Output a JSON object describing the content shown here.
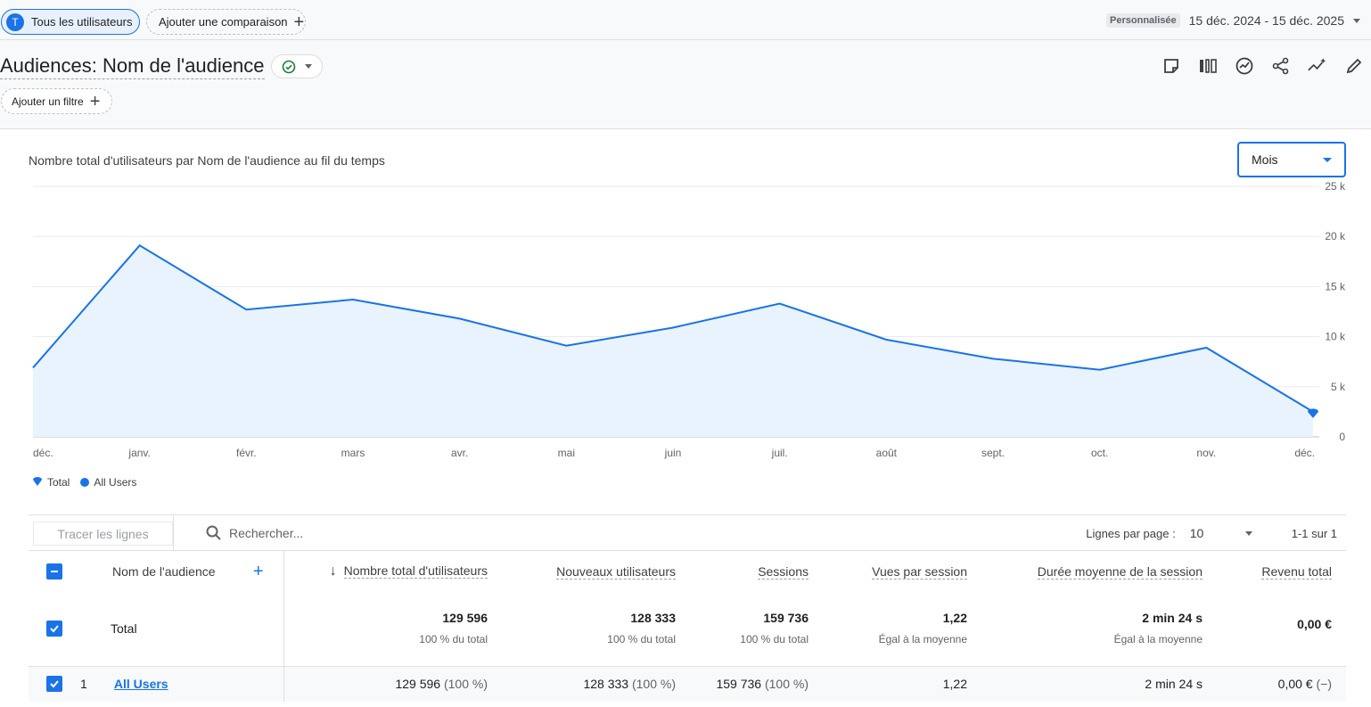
{
  "topbar": {
    "user_avatar_letter": "T",
    "user_chip_label": "Tous les utilisateurs",
    "compare_chip_label": "Ajouter une comparaison",
    "date_tag": "Personnalisée",
    "date_range": "15 déc. 2024 - 15 déc. 2025"
  },
  "header": {
    "title": "Audiences: Nom de l'audience",
    "filter_chip_label": "Ajouter un filtre"
  },
  "chart_panel": {
    "period_select": "Mois"
  },
  "chart_data": {
    "type": "area",
    "title": "Nombre total d'utilisateurs par Nom de l'audience au fil du temps",
    "categories": [
      "déc.",
      "janv.",
      "févr.",
      "mars",
      "avr.",
      "mai",
      "juin",
      "juil.",
      "août",
      "sept.",
      "oct.",
      "nov.",
      "déc."
    ],
    "y_ticks": [
      "0",
      "5 k",
      "10 k",
      "15 k",
      "20 k",
      "25 k"
    ],
    "ylim": [
      0,
      25000
    ],
    "series": [
      {
        "name": "All Users",
        "color": "#1a73e8",
        "values": [
          6900,
          19100,
          12700,
          13700,
          11800,
          9100,
          10900,
          13300,
          9700,
          7800,
          6700,
          8900,
          2500
        ]
      }
    ],
    "legend": [
      {
        "name": "Total",
        "marker": "pin"
      },
      {
        "name": "All Users",
        "marker": "dot"
      }
    ]
  },
  "table": {
    "trace_button": "Tracer les lignes",
    "search_placeholder": "Rechercher...",
    "rows_per_page_label": "Lignes par page :",
    "rows_per_page_value": "10",
    "pager_text": "1-1 sur 1",
    "dimension_header": "Nom de l'audience",
    "headers": [
      "Nombre total d'utilisateurs",
      "Nouveaux utilisateurs",
      "Sessions",
      "Vues par session",
      "Durée moyenne de la session",
      "Revenu total"
    ],
    "total_row": {
      "label": "Total",
      "values": [
        "129 596",
        "128 333",
        "159 736",
        "1,22",
        "2 min 24 s",
        "0,00 €"
      ],
      "subs": [
        "100 % du total",
        "100 % du total",
        "100 % du total",
        "Égal à la moyenne",
        "Égal à la moyenne",
        ""
      ]
    },
    "rows": [
      {
        "index": "1",
        "name": "All Users",
        "values": [
          "129 596",
          "128 333",
          "159 736",
          "1,22",
          "2 min 24 s",
          "0,00 €"
        ],
        "pcts": [
          "(100 %)",
          "(100 %)",
          "(100 %)",
          "",
          "",
          "(−)"
        ]
      }
    ]
  }
}
